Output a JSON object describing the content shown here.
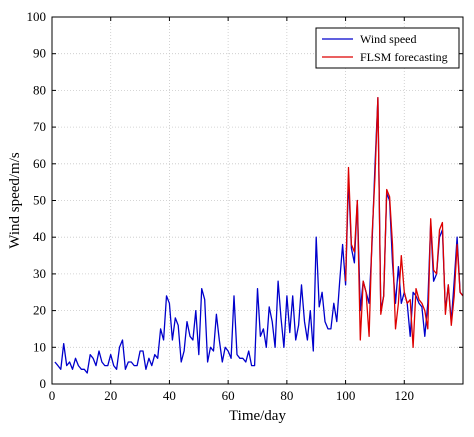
{
  "chart_data": {
    "type": "line",
    "xlabel": "Time/day",
    "ylabel": "Wind speed/m/s",
    "xlim": [
      0,
      140
    ],
    "ylim": [
      0,
      100
    ],
    "xticks": [
      0,
      20,
      40,
      60,
      80,
      100,
      120
    ],
    "yticks": [
      0,
      10,
      20,
      30,
      40,
      50,
      60,
      70,
      80,
      90,
      100
    ],
    "grid": true,
    "legend_position": "top-right",
    "series": [
      {
        "name": "Wind speed",
        "color": "#0000cc",
        "x": [
          1,
          2,
          3,
          4,
          5,
          6,
          7,
          8,
          9,
          10,
          11,
          12,
          13,
          14,
          15,
          16,
          17,
          18,
          19,
          20,
          21,
          22,
          23,
          24,
          25,
          26,
          27,
          28,
          29,
          30,
          31,
          32,
          33,
          34,
          35,
          36,
          37,
          38,
          39,
          40,
          41,
          42,
          43,
          44,
          45,
          46,
          47,
          48,
          49,
          50,
          51,
          52,
          53,
          54,
          55,
          56,
          57,
          58,
          59,
          60,
          61,
          62,
          63,
          64,
          65,
          66,
          67,
          68,
          69,
          70,
          71,
          72,
          73,
          74,
          75,
          76,
          77,
          78,
          79,
          80,
          81,
          82,
          83,
          84,
          85,
          86,
          87,
          88,
          89,
          90,
          91,
          92,
          93,
          94,
          95,
          96,
          97,
          98,
          99,
          100,
          101,
          102,
          103,
          104,
          105,
          106,
          107,
          108,
          109,
          110,
          111,
          112,
          113,
          114,
          115,
          116,
          117,
          118,
          119,
          120,
          121,
          122,
          123,
          124,
          125,
          126,
          127,
          128,
          129,
          130,
          131,
          132,
          133,
          134,
          135,
          136,
          137,
          138,
          139,
          140
        ],
        "y": [
          6,
          5,
          4,
          11,
          5,
          6,
          4,
          7,
          5,
          4,
          4,
          3,
          8,
          7,
          5,
          9,
          6,
          5,
          5,
          8,
          5,
          4,
          10,
          12,
          4,
          6,
          6,
          5,
          5,
          9,
          9,
          4,
          7,
          5,
          8,
          7,
          15,
          12,
          24,
          22,
          12,
          18,
          16,
          6,
          9,
          17,
          13,
          12,
          20,
          8,
          26,
          23,
          6,
          10,
          9,
          19,
          12,
          6,
          10,
          9,
          7,
          24,
          8,
          7,
          7,
          6,
          9,
          5,
          5,
          26,
          13,
          15,
          10,
          21,
          17,
          10,
          28,
          18,
          10,
          24,
          14,
          24,
          12,
          16,
          27,
          17,
          12,
          20,
          9,
          40,
          21,
          25,
          17,
          15,
          15,
          22,
          17,
          28,
          38,
          27,
          56,
          37,
          33,
          50,
          20,
          28,
          25,
          22,
          38,
          59,
          78,
          20,
          24,
          52,
          50,
          33,
          22,
          32,
          22,
          25,
          22,
          13,
          25,
          24,
          22,
          21,
          13,
          22,
          44,
          28,
          30,
          40,
          42,
          20,
          27,
          17,
          28,
          40,
          25,
          24
        ]
      },
      {
        "name": "FLSM  forecasting",
        "color": "#dd0000",
        "x": [
          100,
          101,
          102,
          103,
          104,
          105,
          106,
          107,
          108,
          109,
          110,
          111,
          112,
          113,
          114,
          115,
          116,
          117,
          118,
          119,
          120,
          121,
          122,
          123,
          124,
          125,
          126,
          127,
          128,
          129,
          130,
          131,
          132,
          133,
          134,
          135,
          136,
          137,
          138,
          139,
          140
        ],
        "y": [
          28,
          59,
          38,
          36,
          50,
          12,
          28,
          25,
          13,
          40,
          56,
          78,
          19,
          24,
          53,
          51,
          38,
          15,
          22,
          35,
          25,
          22,
          23,
          10,
          26,
          23,
          22,
          20,
          15,
          45,
          31,
          30,
          42,
          44,
          19,
          27,
          16,
          24,
          38,
          25,
          24
        ]
      }
    ]
  }
}
